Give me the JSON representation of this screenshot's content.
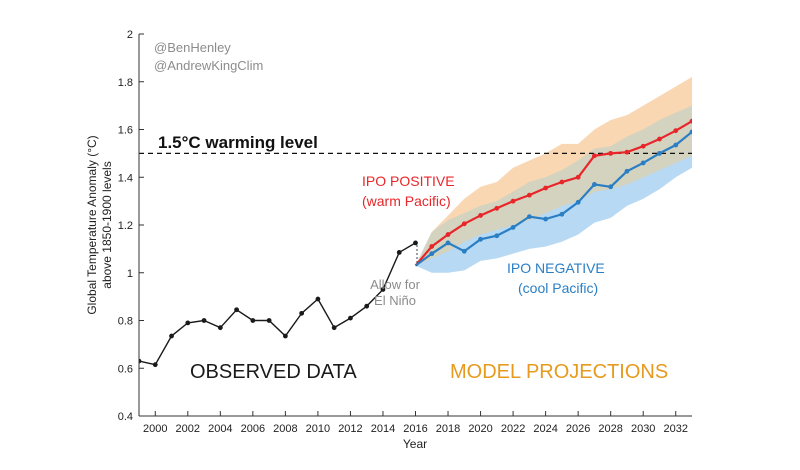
{
  "chart_data": {
    "type": "line",
    "title": "",
    "xlabel": "Year",
    "ylabel_line1": "Global Temperature Anomaly (°C)",
    "ylabel_line2": "above 1850-1900 levels",
    "xlim": [
      1999,
      2033
    ],
    "ylim": [
      0.4,
      2.0
    ],
    "x_ticks": [
      2000,
      2002,
      2004,
      2006,
      2008,
      2010,
      2012,
      2014,
      2016,
      2018,
      2020,
      2022,
      2024,
      2026,
      2028,
      2030,
      2032
    ],
    "y_ticks": [
      0.4,
      0.6,
      0.8,
      1.0,
      1.2,
      1.4,
      1.6,
      1.8,
      2.0
    ],
    "y_tick_labels": [
      "0.4",
      "0.6",
      "0.8",
      "1",
      "1.2",
      "1.4",
      "1.6",
      "1.8",
      "2"
    ],
    "credits": [
      "@BenHenley",
      "@AndrewKingClim"
    ],
    "reference_line": {
      "y": 1.5,
      "label": "1.5°C warming level",
      "style": "dashed"
    },
    "series": [
      {
        "label": "OBSERVED DATA",
        "color": "#1a1a1a",
        "x": [
          1999,
          2000,
          2001,
          2002,
          2003,
          2004,
          2005,
          2006,
          2007,
          2008,
          2009,
          2010,
          2011,
          2012,
          2013,
          2014,
          2015,
          2016
        ],
        "y": [
          0.63,
          0.615,
          0.735,
          0.79,
          0.8,
          0.77,
          0.845,
          0.8,
          0.8,
          0.735,
          0.83,
          0.89,
          0.77,
          0.81,
          0.86,
          0.93,
          1.085,
          1.125
        ]
      },
      {
        "label": "IPO POSITIVE",
        "sublabel": "(warm Pacific)",
        "color": "#e8262a",
        "band_color": "#f7c99a",
        "x": [
          2016,
          2017,
          2018,
          2019,
          2020,
          2021,
          2022,
          2023,
          2024,
          2025,
          2026,
          2027,
          2028,
          2029,
          2030,
          2031,
          2032,
          2033
        ],
        "y": [
          1.03,
          1.11,
          1.16,
          1.205,
          1.24,
          1.27,
          1.3,
          1.325,
          1.355,
          1.38,
          1.4,
          1.49,
          1.5,
          1.505,
          1.53,
          1.56,
          1.595,
          1.635
        ],
        "lower": [
          1.03,
          1.06,
          1.09,
          1.13,
          1.16,
          1.18,
          1.2,
          1.22,
          1.25,
          1.28,
          1.3,
          1.34,
          1.35,
          1.37,
          1.4,
          1.43,
          1.46,
          1.49
        ],
        "upper": [
          1.03,
          1.17,
          1.24,
          1.31,
          1.36,
          1.38,
          1.44,
          1.47,
          1.5,
          1.54,
          1.54,
          1.6,
          1.64,
          1.66,
          1.7,
          1.74,
          1.78,
          1.82
        ]
      },
      {
        "label": "IPO NEGATIVE",
        "sublabel": "(cool Pacific)",
        "color": "#2a7fc4",
        "band_color": "#b7d9f3",
        "x": [
          2016,
          2017,
          2018,
          2019,
          2020,
          2021,
          2022,
          2023,
          2024,
          2025,
          2026,
          2027,
          2028,
          2029,
          2030,
          2031,
          2032,
          2033
        ],
        "y": [
          1.03,
          1.08,
          1.125,
          1.09,
          1.14,
          1.155,
          1.19,
          1.235,
          1.225,
          1.245,
          1.295,
          1.37,
          1.36,
          1.425,
          1.46,
          1.5,
          1.535,
          1.59
        ],
        "lower": [
          1.03,
          1.0,
          1.0,
          1.01,
          1.05,
          1.06,
          1.08,
          1.1,
          1.11,
          1.13,
          1.16,
          1.21,
          1.23,
          1.28,
          1.31,
          1.35,
          1.4,
          1.44
        ],
        "upper": [
          1.03,
          1.17,
          1.22,
          1.25,
          1.28,
          1.3,
          1.34,
          1.38,
          1.4,
          1.43,
          1.47,
          1.52,
          1.53,
          1.57,
          1.6,
          1.64,
          1.67,
          1.7
        ]
      }
    ],
    "annotations": {
      "allow_el_nino": [
        "Allow for",
        "El Niño"
      ],
      "observed": "OBSERVED DATA",
      "projections": "MODEL PROJECTIONS"
    },
    "colors": {
      "observed_text": "#1a1a1a",
      "projection_text": "#e69a1e",
      "allow_text": "#8c8c8c",
      "overlap_band": "#cfd3c3",
      "axis": "#333333"
    }
  }
}
